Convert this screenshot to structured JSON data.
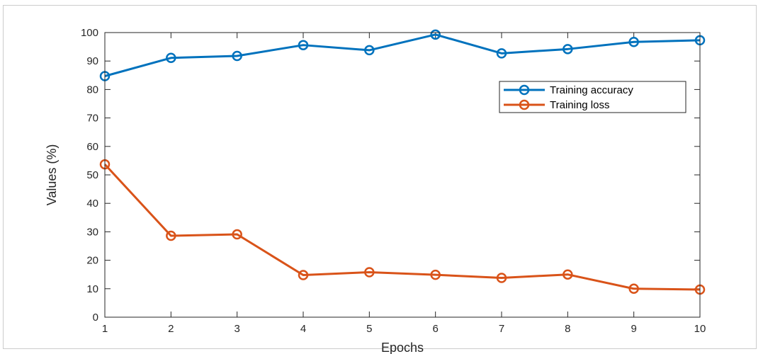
{
  "chart_data": {
    "type": "line",
    "x": [
      1,
      2,
      3,
      4,
      5,
      6,
      7,
      8,
      9,
      10
    ],
    "series": [
      {
        "name": "Training accuracy",
        "color": "#0072BD",
        "marker": "circle",
        "values": [
          84.7,
          91.1,
          91.8,
          95.6,
          93.8,
          99.3,
          92.7,
          94.2,
          96.7,
          97.3
        ]
      },
      {
        "name": "Training loss",
        "color": "#D95319",
        "marker": "circle",
        "values": [
          53.7,
          28.6,
          29.1,
          14.8,
          15.8,
          14.9,
          13.8,
          15.0,
          10.0,
          9.7
        ]
      }
    ],
    "xlabel": "Epochs",
    "ylabel": "Values (%)",
    "xlim": [
      1,
      10
    ],
    "ylim": [
      0,
      100
    ],
    "xticks": [
      "1",
      "2",
      "3",
      "4",
      "5",
      "6",
      "7",
      "8",
      "9",
      "10"
    ],
    "yticks": [
      "0",
      "10",
      "20",
      "30",
      "40",
      "50",
      "60",
      "70",
      "80",
      "90",
      "100"
    ],
    "grid": false,
    "legend_position": "upper-right"
  }
}
